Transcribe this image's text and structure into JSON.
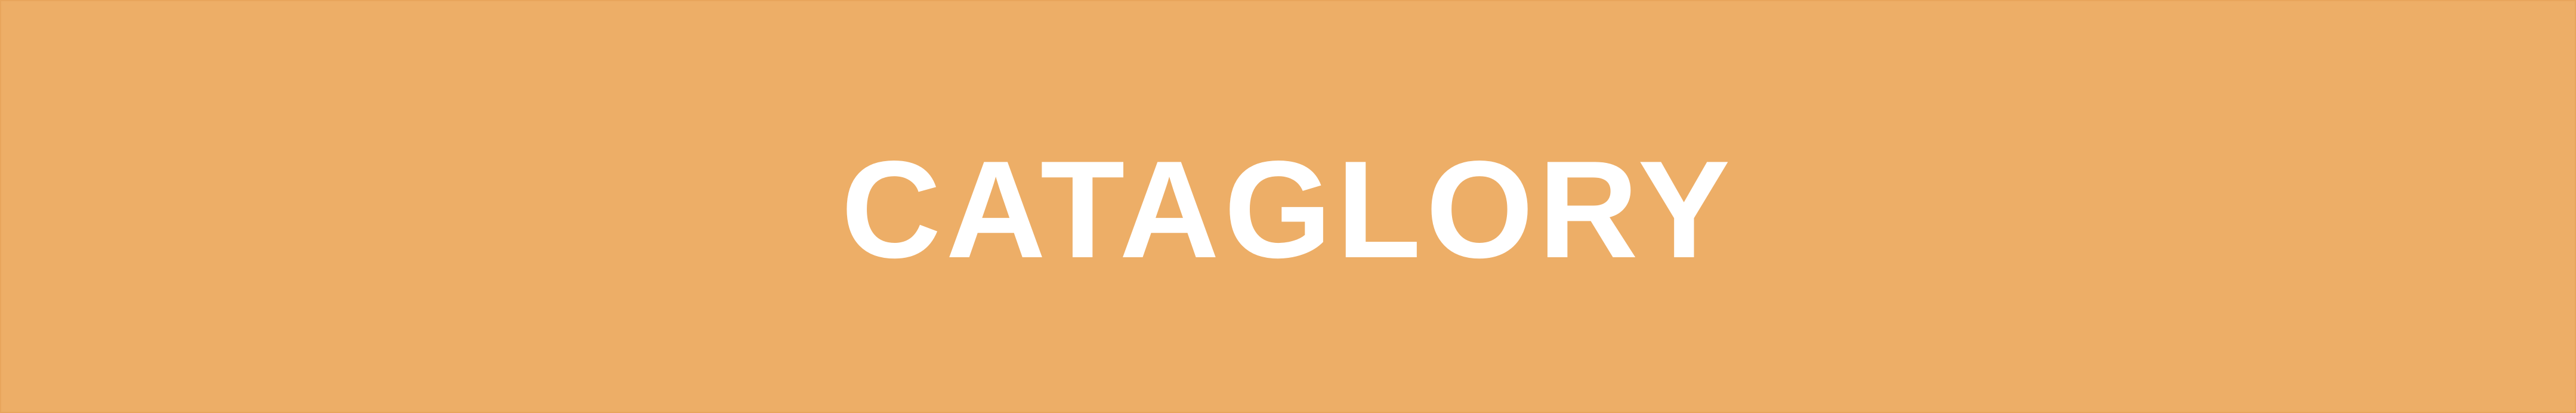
{
  "banner": {
    "text": "CATAGLORY",
    "background_color": "#EDAE67",
    "text_color": "#FFFFFF"
  }
}
